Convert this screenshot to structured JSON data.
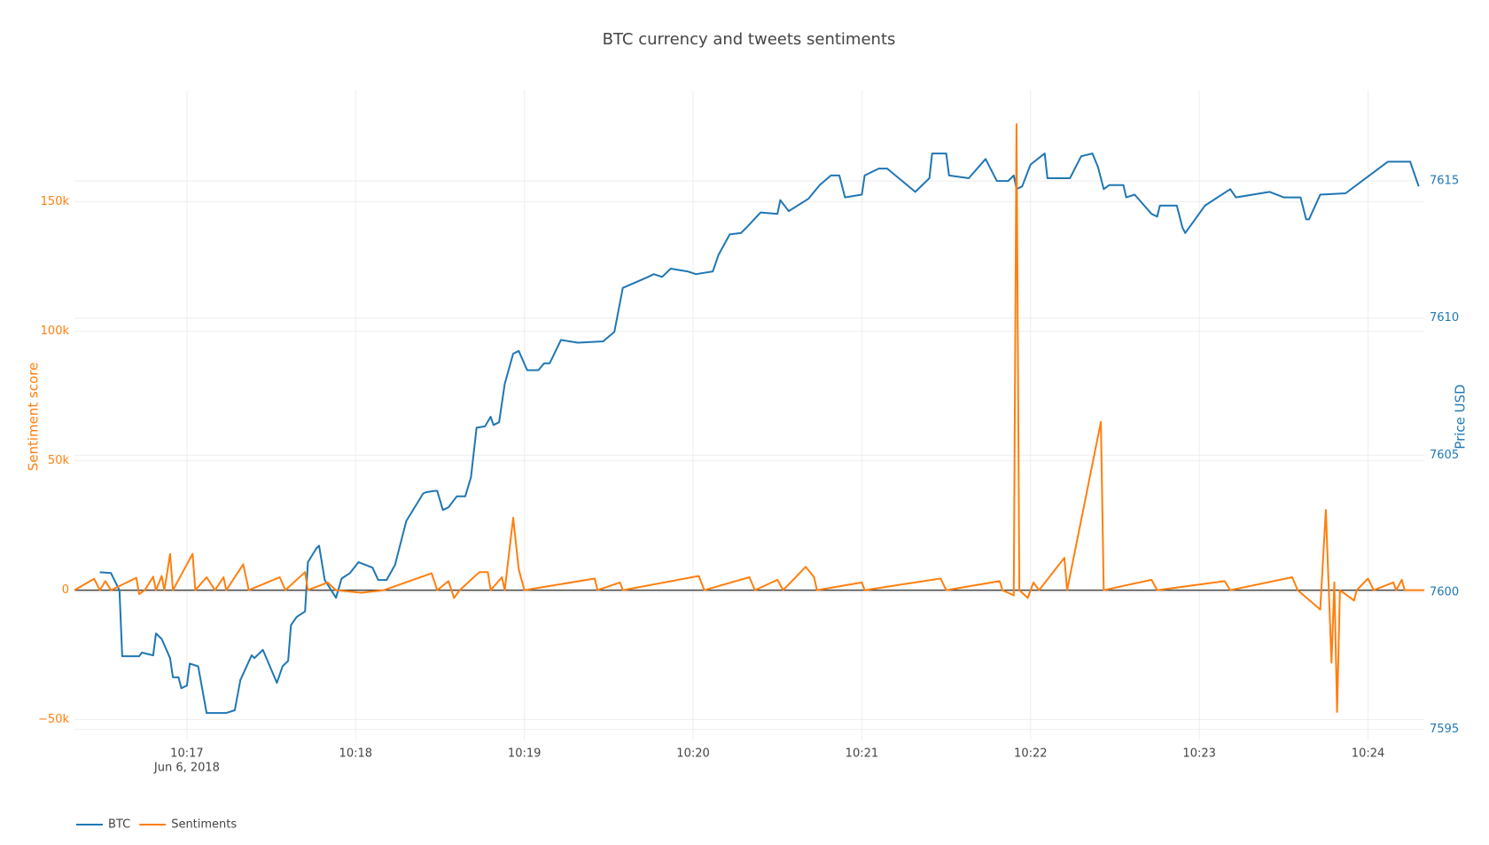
{
  "chart_data": {
    "type": "line",
    "title": "BTC currency and tweets sentiments",
    "y_label": "Sentiment score",
    "y2_label": "Price USD",
    "x_date_label": "Jun 6, 2018",
    "xlim": [
      "2018-06-06 10:16:20",
      "2018-06-06 10:24:20"
    ],
    "xticks": [
      {
        "value": "2018-06-06 10:17:00",
        "label": "10:17"
      },
      {
        "value": "2018-06-06 10:18:00",
        "label": "10:18"
      },
      {
        "value": "2018-06-06 10:19:00",
        "label": "10:19"
      },
      {
        "value": "2018-06-06 10:20:00",
        "label": "10:20"
      },
      {
        "value": "2018-06-06 10:21:00",
        "label": "10:21"
      },
      {
        "value": "2018-06-06 10:22:00",
        "label": "10:22"
      },
      {
        "value": "2018-06-06 10:23:00",
        "label": "10:23"
      },
      {
        "value": "2018-06-06 10:24:00",
        "label": "10:24"
      }
    ],
    "ylim": [
      -58000,
      193000
    ],
    "yticks": [
      {
        "value": -50000,
        "label": "−50k"
      },
      0,
      {
        "value": 50000,
        "label": "50k"
      },
      {
        "value": 100000,
        "label": "100k"
      },
      {
        "value": 150000,
        "label": "150k"
      }
    ],
    "y2lim": [
      7594.6,
      7618.3
    ],
    "y2ticks": [
      7595,
      7600,
      7605,
      7610,
      7615
    ],
    "grid": true,
    "legend": "bottom-left",
    "series": [
      {
        "name": "BTC",
        "color": "#1f77b4",
        "axis": "y2",
        "x": [
          "2018-06-06 10:16:29",
          "2018-06-06 10:16:33",
          "2018-06-06 10:16:36",
          "2018-06-06 10:16:37",
          "2018-06-06 10:16:43",
          "2018-06-06 10:16:44",
          "2018-06-06 10:16:48",
          "2018-06-06 10:16:49",
          "2018-06-06 10:16:51",
          "2018-06-06 10:16:54",
          "2018-06-06 10:16:55",
          "2018-06-06 10:16:57",
          "2018-06-06 10:16:58",
          "2018-06-06 10:17:00",
          "2018-06-06 10:17:01",
          "2018-06-06 10:17:04",
          "2018-06-06 10:17:07",
          "2018-06-06 10:17:11",
          "2018-06-06 10:17:14",
          "2018-06-06 10:17:17",
          "2018-06-06 10:17:19",
          "2018-06-06 10:17:23",
          "2018-06-06 10:17:24",
          "2018-06-06 10:17:27",
          "2018-06-06 10:17:32",
          "2018-06-06 10:17:34",
          "2018-06-06 10:17:36",
          "2018-06-06 10:17:37",
          "2018-06-06 10:17:39",
          "2018-06-06 10:17:42",
          "2018-06-06 10:17:43",
          "2018-06-06 10:17:46",
          "2018-06-06 10:17:47",
          "2018-06-06 10:17:49",
          "2018-06-06 10:17:53",
          "2018-06-06 10:17:55",
          "2018-06-06 10:17:58",
          "2018-06-06 10:18:01",
          "2018-06-06 10:18:06",
          "2018-06-06 10:18:08",
          "2018-06-06 10:18:11",
          "2018-06-06 10:18:14",
          "2018-06-06 10:18:18",
          "2018-06-06 10:18:24",
          "2018-06-06 10:18:25",
          "2018-06-06 10:18:28",
          "2018-06-06 10:18:29",
          "2018-06-06 10:18:31",
          "2018-06-06 10:18:33",
          "2018-06-06 10:18:36",
          "2018-06-06 10:18:39",
          "2018-06-06 10:18:41",
          "2018-06-06 10:18:43",
          "2018-06-06 10:18:46",
          "2018-06-06 10:18:48",
          "2018-06-06 10:18:49",
          "2018-06-06 10:18:51",
          "2018-06-06 10:18:53",
          "2018-06-06 10:18:56",
          "2018-06-06 10:18:58",
          "2018-06-06 10:19:01",
          "2018-06-06 10:19:05",
          "2018-06-06 10:19:07",
          "2018-06-06 10:19:09",
          "2018-06-06 10:19:13",
          "2018-06-06 10:19:19",
          "2018-06-06 10:19:28",
          "2018-06-06 10:19:32",
          "2018-06-06 10:19:35",
          "2018-06-06 10:19:44",
          "2018-06-06 10:19:46",
          "2018-06-06 10:19:49",
          "2018-06-06 10:19:52",
          "2018-06-06 10:19:58",
          "2018-06-06 10:20:01",
          "2018-06-06 10:20:07",
          "2018-06-06 10:20:09",
          "2018-06-06 10:20:13",
          "2018-06-06 10:20:17",
          "2018-06-06 10:20:19",
          "2018-06-06 10:20:24",
          "2018-06-06 10:20:30",
          "2018-06-06 10:20:31",
          "2018-06-06 10:20:34",
          "2018-06-06 10:20:41",
          "2018-06-06 10:20:45",
          "2018-06-06 10:20:49",
          "2018-06-06 10:20:52",
          "2018-06-06 10:20:54",
          "2018-06-06 10:21:00",
          "2018-06-06 10:21:01",
          "2018-06-06 10:21:06",
          "2018-06-06 10:21:09",
          "2018-06-06 10:21:19",
          "2018-06-06 10:21:24",
          "2018-06-06 10:21:25",
          "2018-06-06 10:21:30",
          "2018-06-06 10:21:31",
          "2018-06-06 10:21:38",
          "2018-06-06 10:21:44",
          "2018-06-06 10:21:48",
          "2018-06-06 10:21:52",
          "2018-06-06 10:21:54",
          "2018-06-06 10:21:55",
          "2018-06-06 10:21:57",
          "2018-06-06 10:22:00",
          "2018-06-06 10:22:05",
          "2018-06-06 10:22:06",
          "2018-06-06 10:22:14",
          "2018-06-06 10:22:18",
          "2018-06-06 10:22:22",
          "2018-06-06 10:22:24",
          "2018-06-06 10:22:26",
          "2018-06-06 10:22:28",
          "2018-06-06 10:22:33",
          "2018-06-06 10:22:34",
          "2018-06-06 10:22:37",
          "2018-06-06 10:22:43",
          "2018-06-06 10:22:45",
          "2018-06-06 10:22:46",
          "2018-06-06 10:22:52",
          "2018-06-06 10:22:54",
          "2018-06-06 10:22:55",
          "2018-06-06 10:23:02",
          "2018-06-06 10:23:11",
          "2018-06-06 10:23:13",
          "2018-06-06 10:23:25",
          "2018-06-06 10:23:30",
          "2018-06-06 10:23:36",
          "2018-06-06 10:23:38",
          "2018-06-06 10:23:39",
          "2018-06-06 10:23:43",
          "2018-06-06 10:23:52",
          "2018-06-06 10:24:07",
          "2018-06-06 10:24:14",
          "2018-06-06 10:24:15",
          "2018-06-06 10:24:18"
        ],
        "values": [
          7600.73,
          7600.7,
          7600.07,
          7597.67,
          7597.67,
          7597.8,
          7597.7,
          7598.5,
          7598.3,
          7597.6,
          7596.9,
          7596.9,
          7596.5,
          7596.6,
          7597.4,
          7597.3,
          7595.6,
          7595.6,
          7595.6,
          7595.7,
          7596.8,
          7597.7,
          7597.6,
          7597.9,
          7596.7,
          7597.3,
          7597.5,
          7598.8,
          7599.1,
          7599.3,
          7601.1,
          7601.6,
          7601.7,
          7600.45,
          7599.8,
          7600.5,
          7600.7,
          7601.1,
          7600.9,
          7600.45,
          7600.45,
          7601.0,
          7602.6,
          7603.6,
          7603.65,
          7603.7,
          7603.7,
          7603.0,
          7603.1,
          7603.5,
          7603.5,
          7604.2,
          7606.0,
          7606.05,
          7606.4,
          7606.1,
          7606.2,
          7607.6,
          7608.7,
          7608.8,
          7608.1,
          7608.1,
          7608.35,
          7608.35,
          7609.2,
          7609.1,
          7609.15,
          7609.5,
          7611.1,
          7611.5,
          7611.6,
          7611.5,
          7611.8,
          7611.7,
          7611.6,
          7611.7,
          7612.3,
          7613.05,
          7613.1,
          7613.3,
          7613.85,
          7613.8,
          7614.3,
          7613.9,
          7614.35,
          7614.85,
          7615.2,
          7615.2,
          7614.4,
          7614.5,
          7615.2,
          7615.45,
          7615.45,
          7614.6,
          7615.1,
          7616.0,
          7616.0,
          7615.2,
          7615.1,
          7615.8,
          7615.0,
          7615.0,
          7615.2,
          7614.7,
          7614.8,
          7615.6,
          7616.0,
          7615.1,
          7615.1,
          7615.9,
          7616.0,
          7615.5,
          7614.7,
          7614.85,
          7614.85,
          7614.4,
          7614.5,
          7613.8,
          7613.7,
          7614.1,
          7614.1,
          7613.3,
          7613.1,
          7614.1,
          7614.7,
          7614.4,
          7614.6,
          7614.4,
          7614.4,
          7613.6,
          7613.6,
          7614.5,
          7614.55,
          7615.7,
          7615.7,
          7615.7,
          7614.8
        ]
      },
      {
        "name": "Sentiments",
        "color": "#ff7f0e",
        "axis": "y",
        "x": [
          "2018-06-06 10:16:20",
          "2018-06-06 10:16:27",
          "2018-06-06 10:16:29",
          "2018-06-06 10:16:31",
          "2018-06-06 10:16:33",
          "2018-06-06 10:16:42",
          "2018-06-06 10:16:43",
          "2018-06-06 10:16:45",
          "2018-06-06 10:16:48",
          "2018-06-06 10:16:49",
          "2018-06-06 10:16:51",
          "2018-06-06 10:16:52",
          "2018-06-06 10:16:54",
          "2018-06-06 10:16:55",
          "2018-06-06 10:16:59",
          "2018-06-06 10:17:02",
          "2018-06-06 10:17:03",
          "2018-06-06 10:17:07",
          "2018-06-06 10:17:10",
          "2018-06-06 10:17:13",
          "2018-06-06 10:17:14",
          "2018-06-06 10:17:20",
          "2018-06-06 10:17:22",
          "2018-06-06 10:17:33",
          "2018-06-06 10:17:35",
          "2018-06-06 10:17:42",
          "2018-06-06 10:17:43",
          "2018-06-06 10:17:50",
          "2018-06-06 10:17:53",
          "2018-06-06 10:18:02",
          "2018-06-06 10:18:10",
          "2018-06-06 10:18:27",
          "2018-06-06 10:18:29",
          "2018-06-06 10:18:33",
          "2018-06-06 10:18:35",
          "2018-06-06 10:18:37",
          "2018-06-06 10:18:44",
          "2018-06-06 10:18:47",
          "2018-06-06 10:18:48",
          "2018-06-06 10:18:52",
          "2018-06-06 10:18:53",
          "2018-06-06 10:18:56",
          "2018-06-06 10:18:58",
          "2018-06-06 10:19:00",
          "2018-06-06 10:19:25",
          "2018-06-06 10:19:26",
          "2018-06-06 10:19:34",
          "2018-06-06 10:19:35",
          "2018-06-06 10:20:02",
          "2018-06-06 10:20:04",
          "2018-06-06 10:20:20",
          "2018-06-06 10:20:22",
          "2018-06-06 10:20:30",
          "2018-06-06 10:20:32",
          "2018-06-06 10:20:40",
          "2018-06-06 10:20:43",
          "2018-06-06 10:20:44",
          "2018-06-06 10:21:00",
          "2018-06-06 10:21:01",
          "2018-06-06 10:21:28",
          "2018-06-06 10:21:30",
          "2018-06-06 10:21:49",
          "2018-06-06 10:21:50",
          "2018-06-06 10:21:54",
          "2018-06-06 10:21:55",
          "2018-06-06 10:21:56",
          "2018-06-06 10:21:59",
          "2018-06-06 10:22:01",
          "2018-06-06 10:22:03",
          "2018-06-06 10:22:12",
          "2018-06-06 10:22:13",
          "2018-06-06 10:22:25",
          "2018-06-06 10:22:26",
          "2018-06-06 10:22:43",
          "2018-06-06 10:22:45",
          "2018-06-06 10:23:09",
          "2018-06-06 10:23:11",
          "2018-06-06 10:23:33",
          "2018-06-06 10:23:35",
          "2018-06-06 10:23:43",
          "2018-06-06 10:23:45",
          "2018-06-06 10:23:47",
          "2018-06-06 10:23:48",
          "2018-06-06 10:23:49",
          "2018-06-06 10:23:50",
          "2018-06-06 10:23:55",
          "2018-06-06 10:23:56",
          "2018-06-06 10:24:00",
          "2018-06-06 10:24:02",
          "2018-06-06 10:24:09",
          "2018-06-06 10:24:10",
          "2018-06-06 10:24:12",
          "2018-06-06 10:24:13",
          "2018-06-06 10:24:20"
        ],
        "values": [
          0,
          4400,
          0,
          3500,
          0,
          4800,
          -1500,
          0,
          5200,
          0,
          5500,
          0,
          14000,
          0,
          8000,
          14000,
          0,
          5000,
          0,
          5000,
          0,
          10000,
          0,
          5000,
          0,
          7000,
          0,
          3000,
          0,
          -1000,
          0,
          6500,
          0,
          3500,
          -3000,
          0,
          7000,
          7000,
          0,
          5000,
          0,
          28000,
          8000,
          0,
          4500,
          0,
          3000,
          0,
          5500,
          0,
          5000,
          0,
          4000,
          0,
          9000,
          5000,
          0,
          3000,
          0,
          4500,
          0,
          3500,
          0,
          -2000,
          180000,
          0,
          -3000,
          3000,
          0,
          12500,
          0,
          65000,
          0,
          4000,
          0,
          3500,
          0,
          5000,
          0,
          -7500,
          31000,
          -28000,
          3000,
          -47000,
          0,
          -4000,
          0,
          4500,
          0,
          3000,
          0,
          4000,
          0,
          0
        ]
      }
    ]
  }
}
